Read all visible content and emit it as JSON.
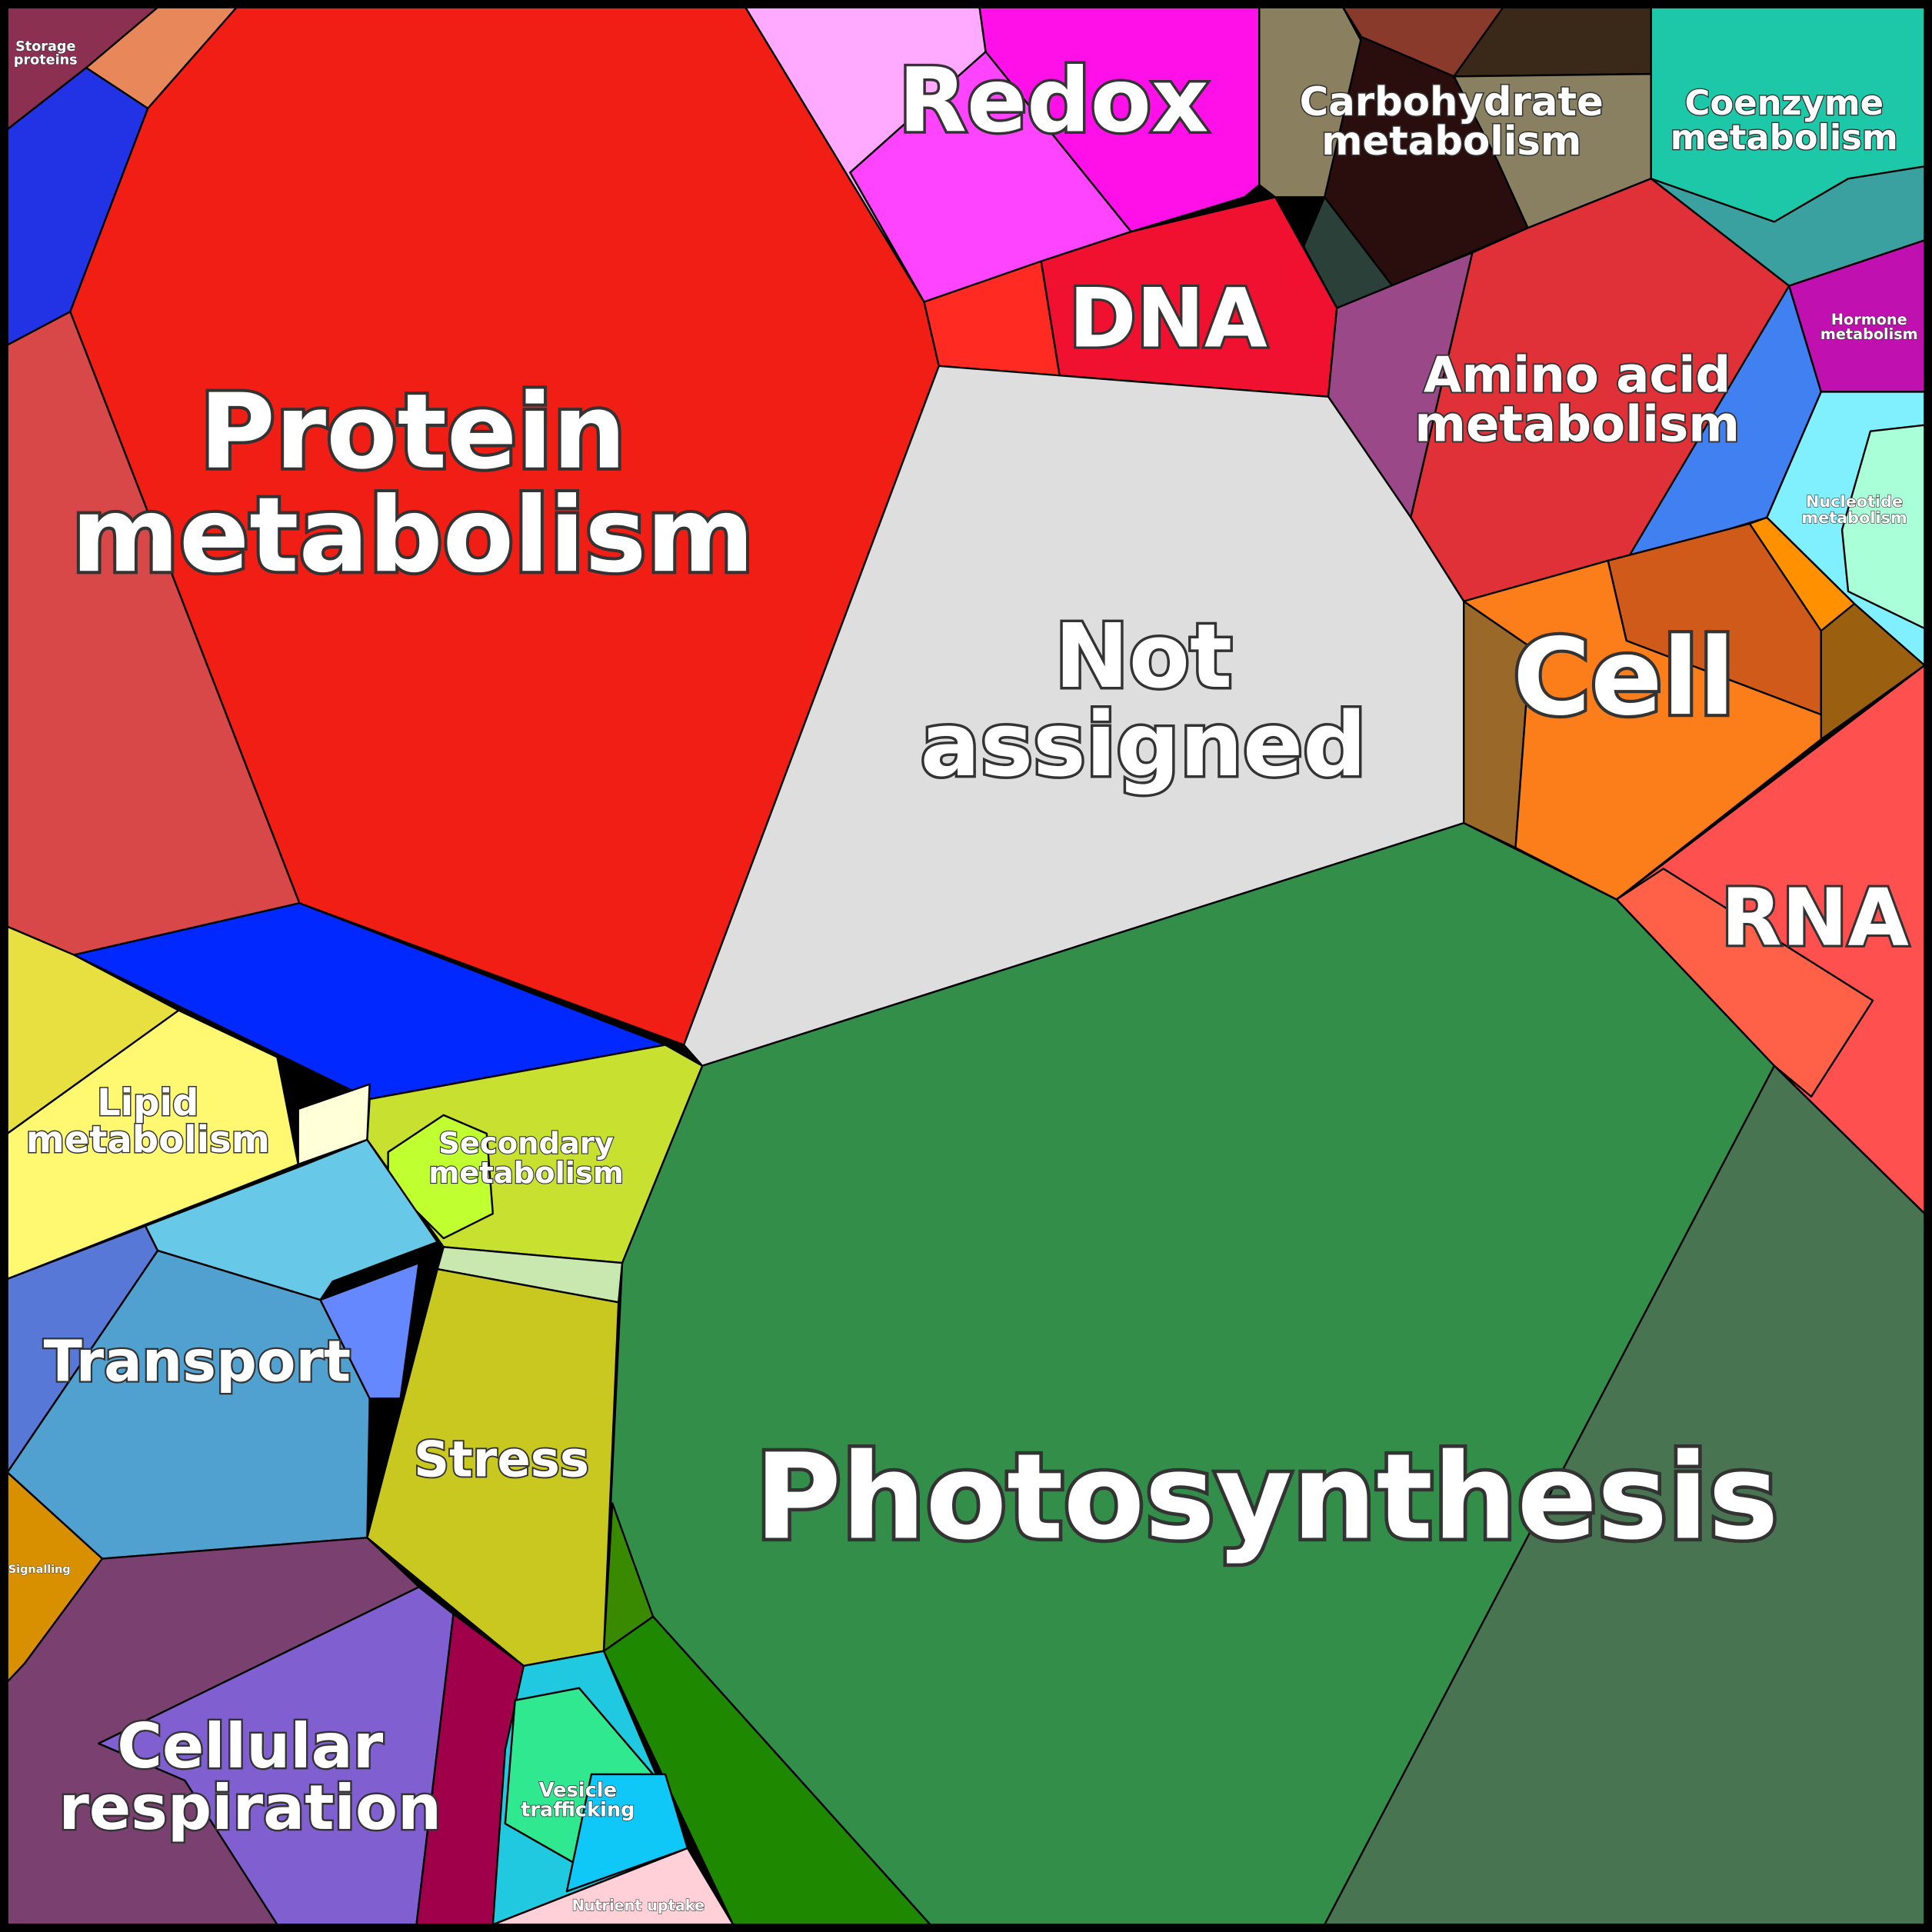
{
  "regions": [
    {
      "lines": [
        "Storage",
        "proteins"
      ]
    },
    {
      "lines": [
        "Redox"
      ]
    },
    {
      "lines": [
        "Carbohydrate",
        "metabolism"
      ]
    },
    {
      "lines": [
        "Coenzyme",
        "metabolism"
      ]
    },
    {
      "lines": [
        "Protein",
        "metabolism"
      ]
    },
    {
      "lines": [
        "DNA"
      ]
    },
    {
      "lines": [
        "Amino acid",
        "metabolism"
      ]
    },
    {
      "lines": [
        "Hormone",
        "metabolism"
      ]
    },
    {
      "lines": [
        "Nucleotide",
        "metabolism"
      ]
    },
    {
      "lines": [
        "Not",
        "assigned"
      ]
    },
    {
      "lines": [
        "Cell"
      ]
    },
    {
      "lines": [
        "RNA"
      ]
    },
    {
      "lines": [
        "Lipid",
        "metabolism"
      ]
    },
    {
      "lines": [
        "Secondary",
        "metabolism"
      ]
    },
    {
      "lines": [
        "Transport"
      ]
    },
    {
      "lines": [
        "Stress"
      ]
    },
    {
      "lines": [
        "Photosynthesis"
      ]
    },
    {
      "lines": [
        "Signalling"
      ]
    },
    {
      "lines": [
        "Cellular",
        "respiration"
      ]
    },
    {
      "lines": [
        "Vesicle",
        "trafficking"
      ]
    },
    {
      "lines": [
        "Nutrient uptake"
      ]
    }
  ]
}
